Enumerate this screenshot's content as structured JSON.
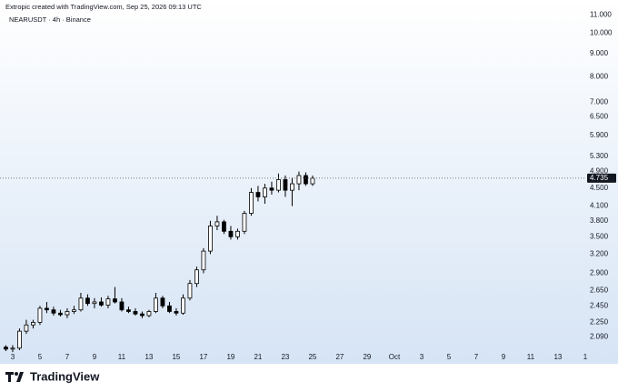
{
  "chart_data": {
    "type": "candlestick",
    "watermark": "Extropic created with TradingView.com, Sep 25, 2026 09:13 UTC",
    "title": "NEARUSDT · 4h · Binance",
    "brand": "TradingView",
    "log_scale": true,
    "grid": false,
    "up_color": "#ffffff",
    "down_color": "#000000",
    "border_color": "#000000",
    "x": [
      1.5,
      2.0,
      2.5,
      3.0,
      3.5,
      4.0,
      4.5,
      5.0,
      5.5,
      6.0,
      6.5,
      7.0,
      7.5,
      8.0,
      8.5,
      9.0,
      9.5,
      10.0,
      10.5,
      11.0,
      11.5,
      12.0,
      12.5,
      13.0,
      13.5,
      14.0,
      14.5,
      15.0,
      15.5,
      16.0,
      16.5,
      17.0,
      17.5,
      18.0,
      18.5,
      19.0,
      19.5,
      20.0,
      20.5,
      21.0,
      21.5,
      22.0,
      22.5,
      23.0,
      23.5,
      24.0
    ],
    "open": [
      1.98,
      1.96,
      1.97,
      2.15,
      2.22,
      2.25,
      2.42,
      2.4,
      2.36,
      2.34,
      2.38,
      2.4,
      2.55,
      2.48,
      2.5,
      2.46,
      2.54,
      2.5,
      2.4,
      2.38,
      2.35,
      2.33,
      2.38,
      2.55,
      2.45,
      2.38,
      2.36,
      2.55,
      2.75,
      2.95,
      3.25,
      3.7,
      3.78,
      3.6,
      3.5,
      3.6,
      3.95,
      4.4,
      4.3,
      4.5,
      4.45,
      4.7,
      4.45,
      4.6,
      4.8,
      4.6
    ],
    "high": [
      2.0,
      2.0,
      2.18,
      2.28,
      2.28,
      2.45,
      2.5,
      2.44,
      2.4,
      2.42,
      2.45,
      2.62,
      2.6,
      2.55,
      2.56,
      2.58,
      2.7,
      2.55,
      2.44,
      2.42,
      2.38,
      2.4,
      2.62,
      2.58,
      2.5,
      2.42,
      2.6,
      2.8,
      3.0,
      3.3,
      3.8,
      3.9,
      3.82,
      3.7,
      3.65,
      4.0,
      4.5,
      4.55,
      4.6,
      4.65,
      4.85,
      4.8,
      4.75,
      4.9,
      4.88,
      4.8
    ],
    "low": [
      1.94,
      1.93,
      1.95,
      2.12,
      2.18,
      2.22,
      2.36,
      2.33,
      2.32,
      2.3,
      2.35,
      2.38,
      2.45,
      2.42,
      2.44,
      2.42,
      2.48,
      2.38,
      2.36,
      2.33,
      2.3,
      2.31,
      2.36,
      2.42,
      2.36,
      2.33,
      2.34,
      2.52,
      2.7,
      2.9,
      3.2,
      3.62,
      3.55,
      3.45,
      3.45,
      3.55,
      3.9,
      4.2,
      4.15,
      4.35,
      4.4,
      4.3,
      4.1,
      4.45,
      4.55,
      4.55
    ],
    "close": [
      1.96,
      1.97,
      2.15,
      2.22,
      2.25,
      2.42,
      2.4,
      2.36,
      2.34,
      2.38,
      2.4,
      2.55,
      2.48,
      2.5,
      2.46,
      2.54,
      2.5,
      2.4,
      2.38,
      2.35,
      2.33,
      2.38,
      2.55,
      2.45,
      2.38,
      2.36,
      2.55,
      2.75,
      2.95,
      3.25,
      3.7,
      3.78,
      3.6,
      3.5,
      3.6,
      3.95,
      4.4,
      4.3,
      4.5,
      4.45,
      4.7,
      4.45,
      4.6,
      4.8,
      4.6,
      4.735
    ],
    "last_price": 4.735,
    "xlim": [
      1.07,
      44.07
    ],
    "xticks": [
      {
        "value": 2,
        "label": "3"
      },
      {
        "value": 4,
        "label": "5"
      },
      {
        "value": 6,
        "label": "7"
      },
      {
        "value": 8,
        "label": "9"
      },
      {
        "value": 10,
        "label": "11"
      },
      {
        "value": 12,
        "label": "13"
      },
      {
        "value": 14,
        "label": "15"
      },
      {
        "value": 16,
        "label": "17"
      },
      {
        "value": 18,
        "label": "19"
      },
      {
        "value": 20,
        "label": "21"
      },
      {
        "value": 22,
        "label": "23"
      },
      {
        "value": 24,
        "label": "25"
      },
      {
        "value": 26,
        "label": "27"
      },
      {
        "value": 28,
        "label": "29"
      },
      {
        "value": 30,
        "label": "Oct"
      },
      {
        "value": 32,
        "label": "3"
      },
      {
        "value": 34,
        "label": "5"
      },
      {
        "value": 36,
        "label": "7"
      },
      {
        "value": 38,
        "label": "9"
      },
      {
        "value": 40,
        "label": "11"
      },
      {
        "value": 42,
        "label": "13"
      },
      {
        "value": 44,
        "label": "1"
      }
    ],
    "ylim": [
      1.86,
      11.6
    ],
    "yticks": [
      {
        "value": 2.09,
        "label": "2.090"
      },
      {
        "value": 2.25,
        "label": "2.250"
      },
      {
        "value": 2.45,
        "label": "2.450"
      },
      {
        "value": 2.65,
        "label": "2.650"
      },
      {
        "value": 2.9,
        "label": "2.900"
      },
      {
        "value": 3.2,
        "label": "3.200"
      },
      {
        "value": 3.5,
        "label": "3.500"
      },
      {
        "value": 3.8,
        "label": "3.800"
      },
      {
        "value": 4.1,
        "label": "4.100"
      },
      {
        "value": 4.5,
        "label": "4.500"
      },
      {
        "value": 4.9,
        "label": "4.900"
      },
      {
        "value": 5.3,
        "label": "5.300"
      },
      {
        "value": 5.9,
        "label": "5.900"
      },
      {
        "value": 6.5,
        "label": "6.500"
      },
      {
        "value": 7,
        "label": "7.000"
      },
      {
        "value": 8,
        "label": "8.000"
      },
      {
        "value": 9,
        "label": "9.000"
      },
      {
        "value": 10,
        "label": "10.000"
      },
      {
        "value": 11,
        "label": "11.000"
      }
    ]
  }
}
